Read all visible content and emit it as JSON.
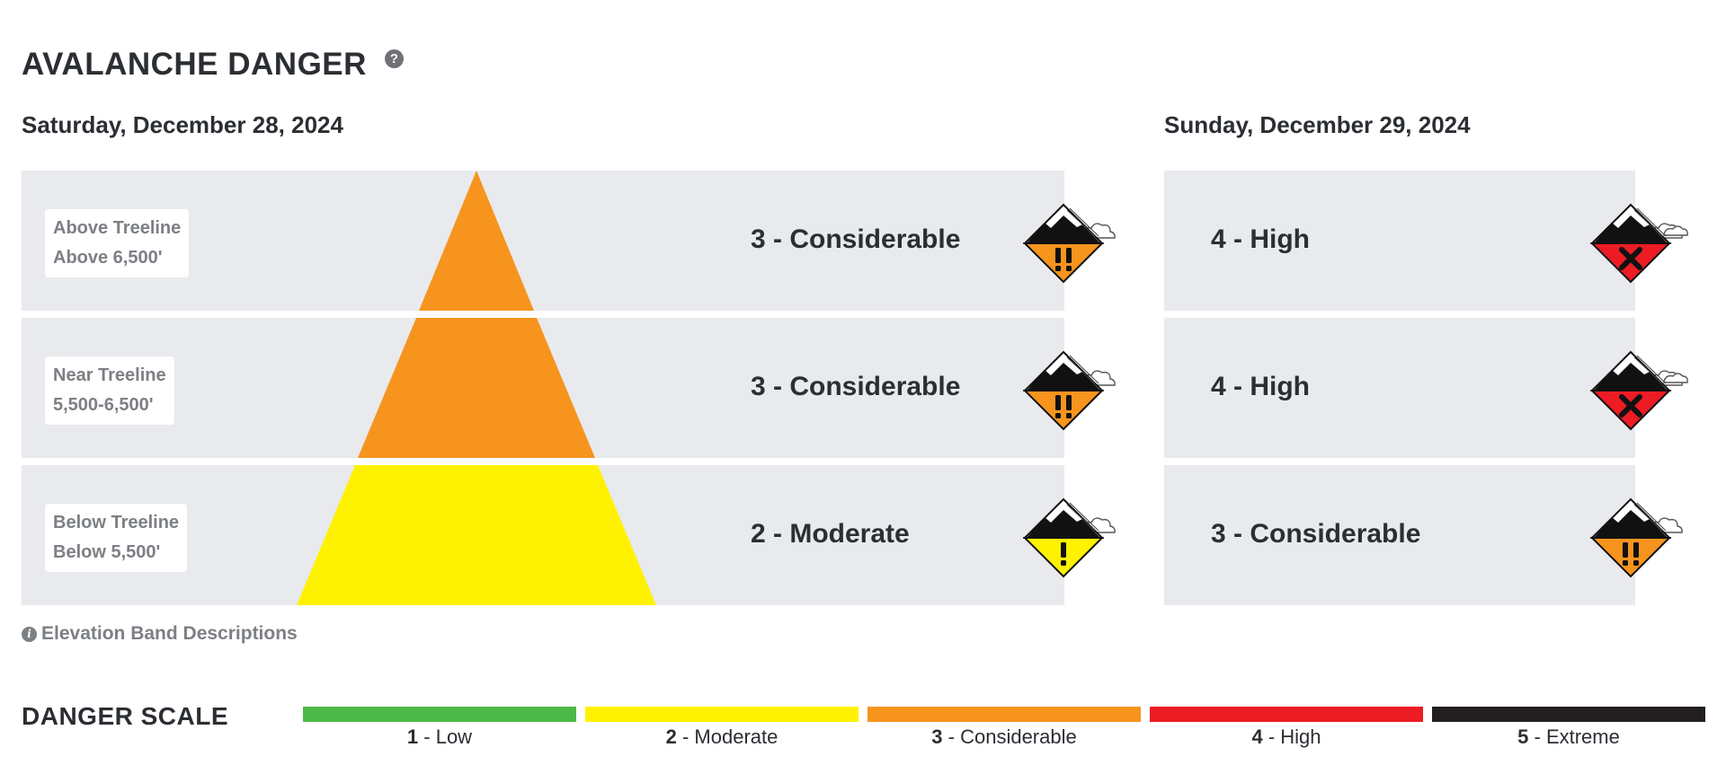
{
  "header": {
    "title": "AVALANCHE DANGER",
    "help_glyph": "?"
  },
  "day1": {
    "date": "Saturday, December 28, 2024",
    "bands": [
      {
        "name": "Above Treeline",
        "elevation": "Above 6,500'",
        "level": 3,
        "rating": "3 - Considerable",
        "icon": "considerable-danger-icon"
      },
      {
        "name": "Near Treeline",
        "elevation": "5,500-6,500'",
        "level": 3,
        "rating": "3 - Considerable",
        "icon": "considerable-danger-icon"
      },
      {
        "name": "Below Treeline",
        "elevation": "Below 5,500'",
        "level": 2,
        "rating": "2 - Moderate",
        "icon": "moderate-danger-icon"
      }
    ]
  },
  "day2": {
    "date": "Sunday, December 29, 2024",
    "bands": [
      {
        "level": 4,
        "rating": "4 - High",
        "icon": "high-danger-icon"
      },
      {
        "level": 4,
        "rating": "4 - High",
        "icon": "high-danger-icon"
      },
      {
        "level": 3,
        "rating": "3 - Considerable",
        "icon": "considerable-danger-icon"
      }
    ]
  },
  "elevation_descriptions": {
    "label": "Elevation Band Descriptions",
    "info_glyph": "i"
  },
  "danger_scale": {
    "title": "DANGER SCALE",
    "levels": [
      {
        "num": "1",
        "name": " - Low",
        "color": "#4cb847"
      },
      {
        "num": "2",
        "name": " - Moderate",
        "color": "#fff200"
      },
      {
        "num": "3",
        "name": " - Considerable",
        "color": "#f7941e"
      },
      {
        "num": "4",
        "name": " - High",
        "color": "#ed1c24"
      },
      {
        "num": "5",
        "name": " - Extreme",
        "color": "#231f20"
      }
    ]
  },
  "colors": {
    "level2": "#fff200",
    "level3": "#f7941e",
    "level4": "#ed1c24",
    "band_bg": "#e8eaed"
  }
}
